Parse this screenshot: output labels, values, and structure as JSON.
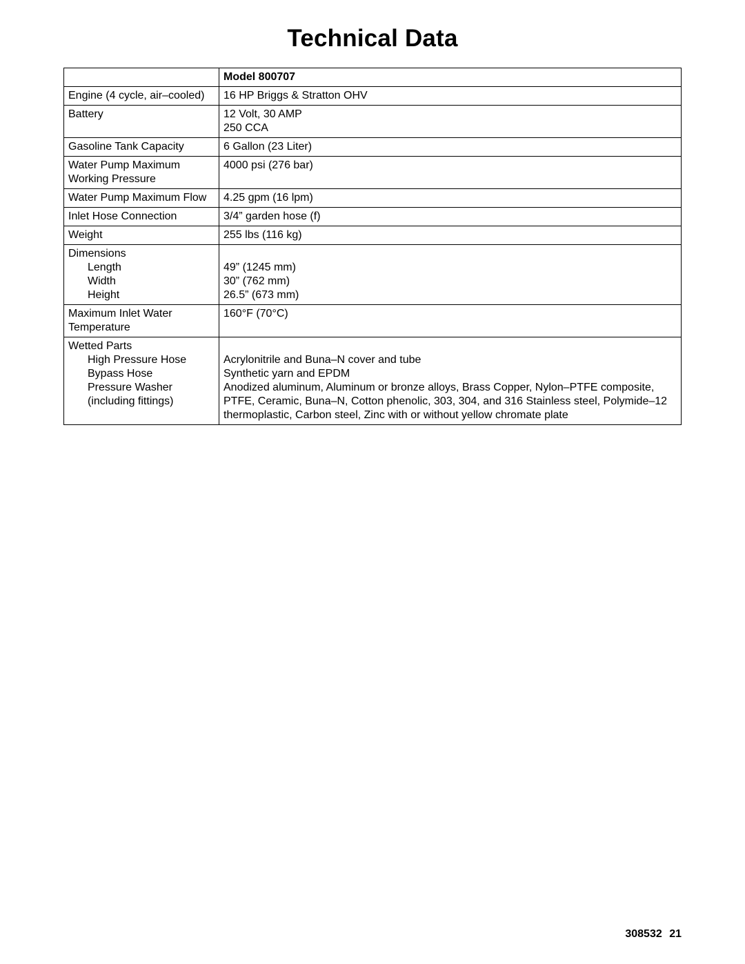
{
  "title": "Technical Data",
  "header": {
    "model_label": "Model  800707"
  },
  "rows": {
    "engine_label": "Engine (4 cycle, air–cooled)",
    "engine_value": "16 HP Briggs & Stratton OHV",
    "battery_label": "Battery",
    "battery_value_line1": "12 Volt, 30 AMP",
    "battery_value_line2": "250 CCA",
    "gasoline_label": "Gasoline Tank Capacity",
    "gasoline_value": "6 Gallon (23 Liter)",
    "pump_press_label": "Water Pump Maximum Working Pressure",
    "pump_press_value": "4000 psi (276 bar)",
    "pump_flow_label": "Water Pump Maximum Flow",
    "pump_flow_value": "4.25 gpm (16 lpm)",
    "inlet_hose_label": "Inlet Hose Connection",
    "inlet_hose_value": "3/4” garden hose (f)",
    "weight_label": "Weight",
    "weight_value": "255 lbs (116 kg)",
    "dimensions_label": "Dimensions",
    "dimensions_sub_length": "Length",
    "dimensions_sub_width": "Width",
    "dimensions_sub_height": "Height",
    "dimensions_val_length": "49” (1245 mm)",
    "dimensions_val_width": "30” (762 mm)",
    "dimensions_val_height": "26.5” (673 mm)",
    "max_inlet_temp_label": "Maximum Inlet Water Temperature",
    "max_inlet_temp_value": "160°F (70°C)",
    "wetted_label": "Wetted Parts",
    "wetted_sub1": "High Pressure Hose",
    "wetted_sub2": "Bypass Hose",
    "wetted_sub3_line1": "Pressure Washer",
    "wetted_sub3_line2": "(including fittings)",
    "wetted_val1": "Acrylonitrile and Buna–N cover and tube",
    "wetted_val2": "Synthetic yarn and EPDM",
    "wetted_val3": "Anodized aluminum, Aluminum or bronze alloys, Brass Copper, Nylon–PTFE composite, PTFE, Ceramic, Buna–N, Cotton phenolic, 303, 304, and 316 Stainless steel, Polymide–12 thermoplastic, Carbon steel, Zinc with or without yellow chromate plate"
  },
  "footer": {
    "docno": "308532",
    "page": "21"
  }
}
